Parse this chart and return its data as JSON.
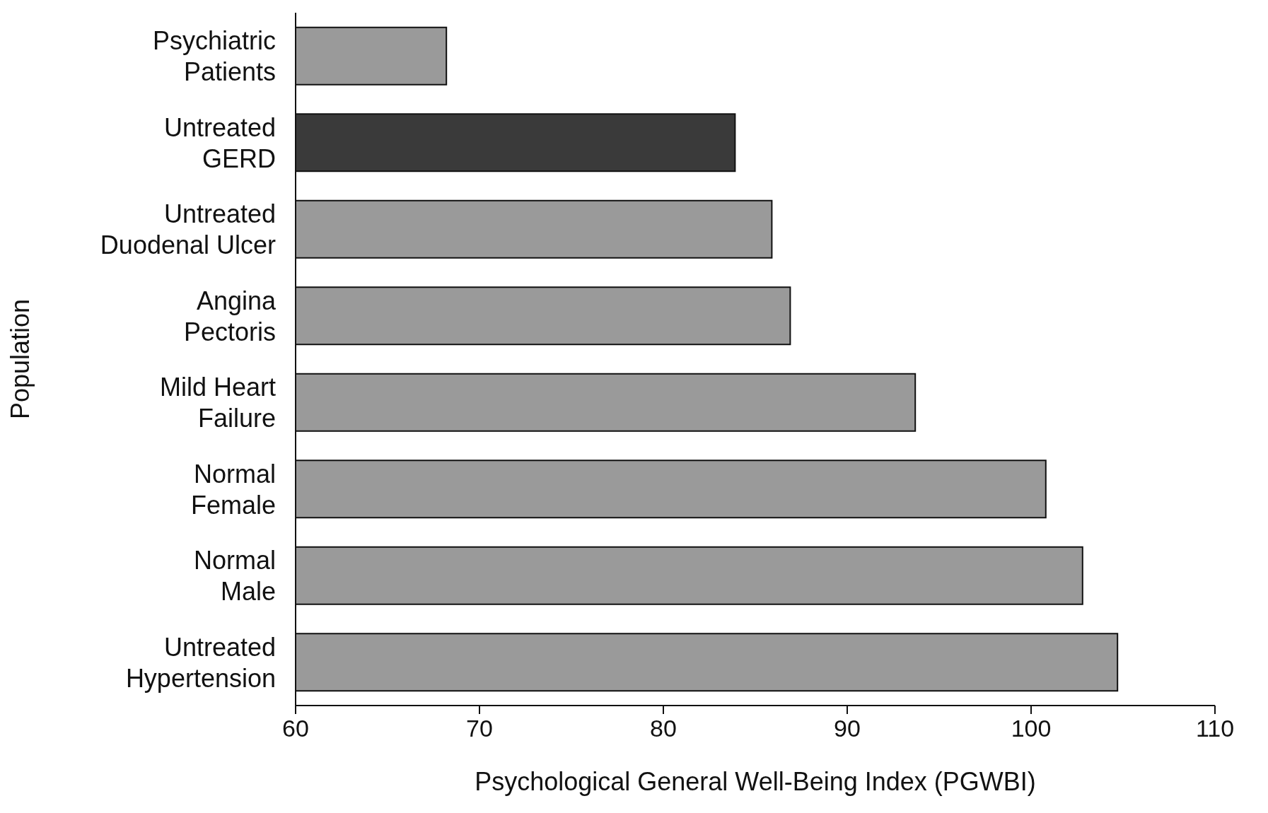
{
  "chart_data": {
    "type": "bar",
    "orientation": "horizontal",
    "xlabel": "Psychological General Well-Being Index (PGWBI)",
    "ylabel": "Population",
    "categories": [
      "Psychiatric Patients",
      "Untreated GERD",
      "Untreated Duodenal Ulcer",
      "Angina Pectoris",
      "Mild Heart Failure",
      "Normal Female",
      "Normal Male",
      "Untreated Hypertension"
    ],
    "values": [
      68.2,
      83.9,
      85.9,
      86.9,
      93.7,
      100.8,
      102.8,
      104.7
    ],
    "colors": [
      "#9a9a9a",
      "#3a3a3a",
      "#9a9a9a",
      "#9a9a9a",
      "#9a9a9a",
      "#9a9a9a",
      "#9a9a9a",
      "#9a9a9a"
    ],
    "xlim": [
      60,
      110
    ],
    "xticks": [
      60,
      70,
      80,
      90,
      100,
      110
    ],
    "grid": false,
    "legend": false
  }
}
